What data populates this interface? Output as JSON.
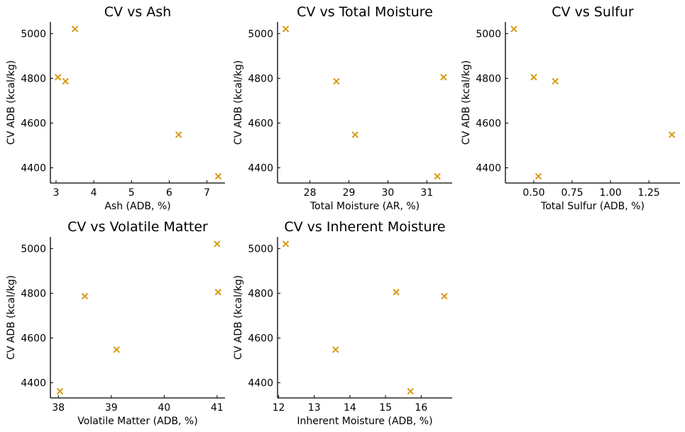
{
  "colors": {
    "marker": "#d89a12",
    "axis": "#000000",
    "background": "#ffffff"
  },
  "chart_data": [
    {
      "type": "scatter",
      "title": "CV vs Ash",
      "xlabel": "Ash (ADB, %)",
      "ylabel": "CV ADB (kcal/kg)",
      "xlim": [
        2.85,
        7.48
      ],
      "ylim": [
        4332,
        5052
      ],
      "xticks": [
        3,
        4,
        5,
        6,
        7
      ],
      "xtick_labels": [
        "3",
        "4",
        "5",
        "6",
        "7"
      ],
      "yticks": [
        4400,
        4600,
        4800,
        5000
      ],
      "ytick_labels": [
        "4400",
        "4600",
        "4800",
        "5000"
      ],
      "marker": "x",
      "grid": false,
      "points": [
        {
          "x": 3.05,
          "y": 4805
        },
        {
          "x": 3.25,
          "y": 4787
        },
        {
          "x": 3.5,
          "y": 5021
        },
        {
          "x": 6.25,
          "y": 4548
        },
        {
          "x": 7.3,
          "y": 4362
        }
      ]
    },
    {
      "type": "scatter",
      "title": "CV vs Total Moisture",
      "xlabel": "Total Moisture (AR, %)",
      "ylabel": "CV ADB (kcal/kg)",
      "xlim": [
        27.17,
        31.65
      ],
      "ylim": [
        4332,
        5052
      ],
      "xticks": [
        28,
        29,
        30,
        31
      ],
      "xtick_labels": [
        "28",
        "29",
        "30",
        "31"
      ],
      "yticks": [
        4400,
        4600,
        4800,
        5000
      ],
      "ytick_labels": [
        "4400",
        "4600",
        "4800",
        "5000"
      ],
      "marker": "x",
      "grid": false,
      "points": [
        {
          "x": 27.38,
          "y": 5021
        },
        {
          "x": 28.68,
          "y": 4787
        },
        {
          "x": 29.16,
          "y": 4548
        },
        {
          "x": 31.27,
          "y": 4362
        },
        {
          "x": 31.43,
          "y": 4805
        }
      ]
    },
    {
      "type": "scatter",
      "title": "CV vs Sulfur",
      "xlabel": "Total Sulfur (ADB, %)",
      "ylabel": "CV ADB (kcal/kg)",
      "xlim": [
        0.315,
        1.453
      ],
      "ylim": [
        4332,
        5052
      ],
      "xticks": [
        0.5,
        0.75,
        1.0,
        1.25
      ],
      "xtick_labels": [
        "0.50",
        "0.75",
        "1.00",
        "1.25"
      ],
      "yticks": [
        4400,
        4600,
        4800,
        5000
      ],
      "ytick_labels": [
        "4400",
        "4600",
        "4800",
        "5000"
      ],
      "marker": "x",
      "grid": false,
      "points": [
        {
          "x": 0.37,
          "y": 5021
        },
        {
          "x": 0.5,
          "y": 4805
        },
        {
          "x": 0.53,
          "y": 4362
        },
        {
          "x": 0.64,
          "y": 4787
        },
        {
          "x": 1.4,
          "y": 4548
        }
      ]
    },
    {
      "type": "scatter",
      "title": "CV vs Volatile Matter",
      "xlabel": "Volatile Matter (ADB, %)",
      "ylabel": "CV ADB (kcal/kg)",
      "xlim": [
        37.85,
        41.15
      ],
      "ylim": [
        4332,
        5052
      ],
      "xticks": [
        38,
        39,
        40,
        41
      ],
      "xtick_labels": [
        "38",
        "39",
        "40",
        "41"
      ],
      "yticks": [
        4400,
        4600,
        4800,
        5000
      ],
      "ytick_labels": [
        "4400",
        "4600",
        "4800",
        "5000"
      ],
      "marker": "x",
      "grid": false,
      "points": [
        {
          "x": 38.03,
          "y": 4362
        },
        {
          "x": 38.5,
          "y": 4787
        },
        {
          "x": 39.1,
          "y": 4548
        },
        {
          "x": 41.0,
          "y": 5021
        },
        {
          "x": 41.02,
          "y": 4805
        }
      ]
    },
    {
      "type": "scatter",
      "title": "CV vs Inherent Moisture",
      "xlabel": "Inherent Moisture (ADB, %)",
      "ylabel": "CV ADB (kcal/kg)",
      "xlim": [
        11.97,
        16.87
      ],
      "ylim": [
        4332,
        5052
      ],
      "xticks": [
        12,
        13,
        14,
        15,
        16
      ],
      "xtick_labels": [
        "12",
        "13",
        "14",
        "15",
        "16"
      ],
      "yticks": [
        4400,
        4600,
        4800,
        5000
      ],
      "ytick_labels": [
        "4400",
        "4600",
        "4800",
        "5000"
      ],
      "marker": "x",
      "grid": false,
      "points": [
        {
          "x": 12.2,
          "y": 5021
        },
        {
          "x": 13.6,
          "y": 4548
        },
        {
          "x": 15.3,
          "y": 4805
        },
        {
          "x": 15.7,
          "y": 4362
        },
        {
          "x": 16.65,
          "y": 4787
        }
      ]
    }
  ]
}
